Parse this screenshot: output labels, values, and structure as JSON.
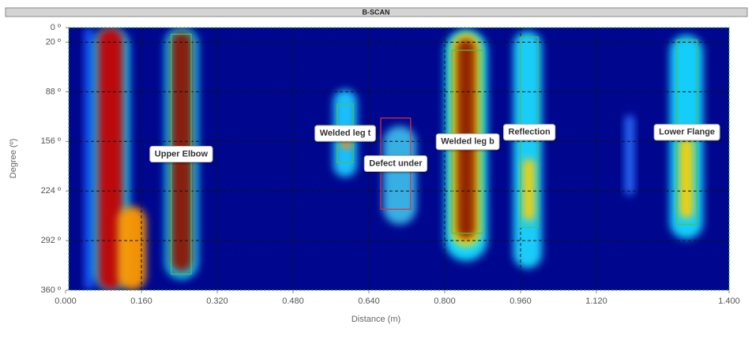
{
  "chart_data": {
    "type": "heatmap",
    "title": "B-SCAN",
    "x_label": "Distance (m)",
    "y_label": "Degree (º)",
    "background": "#00078f",
    "xlim": [
      0,
      1.4
    ],
    "ylim": [
      0,
      360
    ],
    "xticks": [
      {
        "value": 0,
        "label": "0.000"
      },
      {
        "value": 0.16,
        "label": "0.160"
      },
      {
        "value": 0.32,
        "label": "0.320"
      },
      {
        "value": 0.48,
        "label": "0.480"
      },
      {
        "value": 0.64,
        "label": "0.640"
      },
      {
        "value": 0.8,
        "label": "0.800"
      },
      {
        "value": 0.96,
        "label": "0.960"
      },
      {
        "value": 1.12,
        "label": "1.120"
      },
      {
        "value": 1.4,
        "label": "1.400"
      }
    ],
    "yticks": [
      {
        "value": 0,
        "label": "0 º"
      },
      {
        "value": 20,
        "label": "20 º"
      },
      {
        "value": 88,
        "label": "88 º"
      },
      {
        "value": 156,
        "label": "156 º"
      },
      {
        "value": 224,
        "label": "224 º"
      },
      {
        "value": 292,
        "label": "292 º"
      },
      {
        "value": 360,
        "label": "360 º"
      }
    ],
    "grid": true,
    "signals": [
      {
        "x": [
          0.04,
          0.06
        ],
        "y": [
          0,
          360
        ],
        "color": "#1e5cff"
      },
      {
        "x": [
          0.058,
          0.135
        ],
        "y": [
          0,
          360
        ],
        "color": "#19d8ff"
      },
      {
        "x": [
          0.068,
          0.122
        ],
        "y": [
          0,
          360
        ],
        "color": "#c40000"
      },
      {
        "x": [
          0.11,
          0.17
        ],
        "y": [
          245,
          360
        ],
        "color": "#ff9a00"
      },
      {
        "x": [
          0.21,
          0.28
        ],
        "y": [
          0,
          345
        ],
        "color": "#18d8ff"
      },
      {
        "x": [
          0.222,
          0.268
        ],
        "y": [
          5,
          335
        ],
        "color": "#8e1400"
      },
      {
        "x": [
          0.565,
          0.615
        ],
        "y": [
          85,
          205
        ],
        "color": "#1fc8ff"
      },
      {
        "x": [
          0.583,
          0.602
        ],
        "y": [
          148,
          168
        ],
        "color": "#ff8a00"
      },
      {
        "x": [
          0.67,
          0.74
        ],
        "y": [
          135,
          270
        ],
        "color": "#3ab8e8"
      },
      {
        "x": [
          0.8,
          0.89
        ],
        "y": [
          3,
          320
        ],
        "color": "#18e0ff"
      },
      {
        "x": [
          0.815,
          0.875
        ],
        "y": [
          8,
          300
        ],
        "color": "#ffe600"
      },
      {
        "x": [
          0.825,
          0.865
        ],
        "y": [
          15,
          290
        ],
        "color": "#8e1a00"
      },
      {
        "x": [
          0.945,
          1.005
        ],
        "y": [
          5,
          330
        ],
        "color": "#1ad8ff"
      },
      {
        "x": [
          0.965,
          0.99
        ],
        "y": [
          180,
          265
        ],
        "color": "#ffd000"
      },
      {
        "x": [
          1.275,
          1.345
        ],
        "y": [
          10,
          290
        ],
        "color": "#18d8ff"
      },
      {
        "x": [
          1.295,
          1.325
        ],
        "y": [
          150,
          262
        ],
        "color": "#ffd000"
      },
      {
        "x": [
          1.18,
          1.2
        ],
        "y": [
          120,
          230
        ],
        "color": "#2a70ff"
      }
    ],
    "annotations": [
      {
        "label": "Upper Elbow",
        "x": [
          0.223,
          0.265
        ],
        "y": [
          9,
          338
        ],
        "color": "#4ec24e"
      },
      {
        "label": "Welded leg t",
        "x": [
          0.573,
          0.607
        ],
        "y": [
          105,
          185
        ],
        "color": "#4ec24e"
      },
      {
        "label": "Defect under",
        "x": [
          0.665,
          0.728
        ],
        "y": [
          124,
          249
        ],
        "color": "#e0303a"
      },
      {
        "label": "Welded leg b",
        "x": [
          0.815,
          0.882
        ],
        "y": [
          31,
          282
        ],
        "color": "#4ec24e"
      },
      {
        "label": "Reflection",
        "x": [
          0.96,
          0.997
        ],
        "y": [
          13,
          274
        ],
        "color": "#4ec24e"
      },
      {
        "label": "Lower Flange",
        "x": [
          1.29,
          1.332
        ],
        "y": [
          17,
          270
        ],
        "color": "#4ec24e"
      }
    ]
  }
}
